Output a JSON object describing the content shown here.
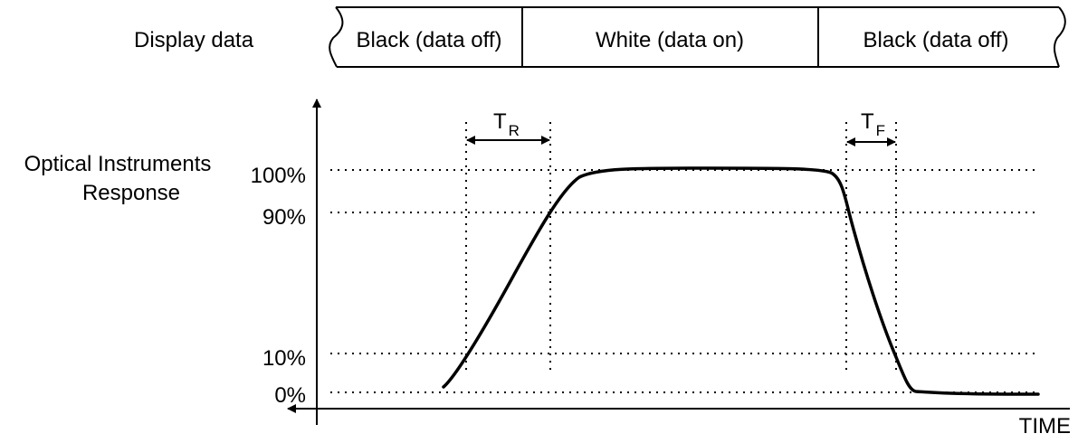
{
  "display_data": {
    "label": "Display data",
    "segments": [
      {
        "label": "Black (data off)"
      },
      {
        "label": "White (data on)"
      },
      {
        "label": "Black (data off)"
      }
    ]
  },
  "axis": {
    "y_label_line1": "Optical Instruments",
    "y_label_line2": "Response",
    "x_label": "TIME",
    "levels": {
      "p100": "100%",
      "p90": "90%",
      "p10": "10%",
      "p0": "0%"
    }
  },
  "timings": {
    "rise": {
      "letter": "T",
      "sub": "R"
    },
    "fall": {
      "letter": "T",
      "sub": "F"
    }
  }
}
